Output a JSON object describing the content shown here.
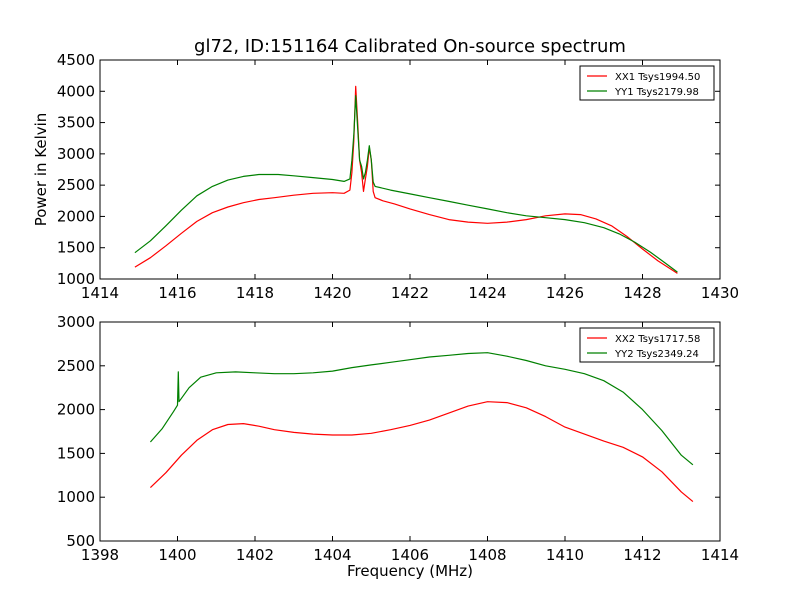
{
  "chart_data": [
    {
      "type": "line",
      "title": "gl72, ID:151164 Calibrated On-source spectrum",
      "xlabel": "",
      "ylabel": "Power in Kelvin",
      "xlim": [
        1414,
        1430
      ],
      "ylim": [
        1000,
        4500
      ],
      "xticks": [
        1414,
        1416,
        1418,
        1420,
        1422,
        1424,
        1426,
        1428,
        1430
      ],
      "yticks": [
        1000,
        1500,
        2000,
        2500,
        3000,
        3500,
        4000,
        4500
      ],
      "legend_position": "top-right",
      "grid": false,
      "series": [
        {
          "name": "XX1 Tsys1994.50",
          "color": "#ff0000",
          "points": [
            [
              1414.9,
              1190
            ],
            [
              1415.3,
              1340
            ],
            [
              1415.7,
              1530
            ],
            [
              1416.1,
              1730
            ],
            [
              1416.5,
              1920
            ],
            [
              1416.9,
              2060
            ],
            [
              1417.3,
              2150
            ],
            [
              1417.7,
              2220
            ],
            [
              1418.1,
              2270
            ],
            [
              1418.5,
              2300
            ],
            [
              1419.0,
              2340
            ],
            [
              1419.5,
              2370
            ],
            [
              1420.0,
              2380
            ],
            [
              1420.3,
              2370
            ],
            [
              1420.45,
              2420
            ],
            [
              1420.5,
              2700
            ],
            [
              1420.55,
              3200
            ],
            [
              1420.6,
              4080
            ],
            [
              1420.65,
              3500
            ],
            [
              1420.7,
              2900
            ],
            [
              1420.75,
              2700
            ],
            [
              1420.8,
              2400
            ],
            [
              1420.85,
              2600
            ],
            [
              1420.9,
              2800
            ],
            [
              1420.95,
              3100
            ],
            [
              1421.0,
              2900
            ],
            [
              1421.05,
              2400
            ],
            [
              1421.1,
              2300
            ],
            [
              1421.3,
              2250
            ],
            [
              1421.6,
              2200
            ],
            [
              1422.0,
              2120
            ],
            [
              1422.5,
              2030
            ],
            [
              1423.0,
              1950
            ],
            [
              1423.5,
              1910
            ],
            [
              1424.0,
              1890
            ],
            [
              1424.5,
              1910
            ],
            [
              1425.0,
              1950
            ],
            [
              1425.5,
              2010
            ],
            [
              1426.0,
              2040
            ],
            [
              1426.4,
              2030
            ],
            [
              1426.8,
              1960
            ],
            [
              1427.2,
              1850
            ],
            [
              1427.6,
              1680
            ],
            [
              1428.0,
              1480
            ],
            [
              1428.4,
              1290
            ],
            [
              1428.9,
              1090
            ]
          ]
        },
        {
          "name": "YY1 Tsys2179.98",
          "color": "#008000",
          "points": [
            [
              1414.9,
              1420
            ],
            [
              1415.3,
              1610
            ],
            [
              1415.7,
              1850
            ],
            [
              1416.1,
              2100
            ],
            [
              1416.5,
              2330
            ],
            [
              1416.9,
              2480
            ],
            [
              1417.3,
              2580
            ],
            [
              1417.7,
              2640
            ],
            [
              1418.1,
              2670
            ],
            [
              1418.6,
              2670
            ],
            [
              1419.0,
              2650
            ],
            [
              1419.5,
              2620
            ],
            [
              1420.0,
              2590
            ],
            [
              1420.3,
              2560
            ],
            [
              1420.45,
              2600
            ],
            [
              1420.5,
              2900
            ],
            [
              1420.55,
              3300
            ],
            [
              1420.6,
              3930
            ],
            [
              1420.65,
              3400
            ],
            [
              1420.7,
              2900
            ],
            [
              1420.75,
              2800
            ],
            [
              1420.8,
              2600
            ],
            [
              1420.85,
              2700
            ],
            [
              1420.9,
              2900
            ],
            [
              1420.95,
              3130
            ],
            [
              1421.0,
              2900
            ],
            [
              1421.05,
              2550
            ],
            [
              1421.1,
              2480
            ],
            [
              1421.5,
              2420
            ],
            [
              1422.0,
              2360
            ],
            [
              1422.5,
              2300
            ],
            [
              1423.0,
              2240
            ],
            [
              1423.5,
              2180
            ],
            [
              1424.0,
              2120
            ],
            [
              1424.5,
              2060
            ],
            [
              1425.0,
              2010
            ],
            [
              1425.5,
              1980
            ],
            [
              1426.0,
              1950
            ],
            [
              1426.5,
              1900
            ],
            [
              1427.0,
              1820
            ],
            [
              1427.4,
              1720
            ],
            [
              1427.8,
              1590
            ],
            [
              1428.2,
              1430
            ],
            [
              1428.6,
              1250
            ],
            [
              1428.9,
              1110
            ]
          ]
        }
      ]
    },
    {
      "type": "line",
      "title": "",
      "xlabel": "Frequency (MHz)",
      "ylabel": "",
      "xlim": [
        1398,
        1414
      ],
      "ylim": [
        500,
        3000
      ],
      "xticks": [
        1398,
        1400,
        1402,
        1404,
        1406,
        1408,
        1410,
        1412,
        1414
      ],
      "yticks": [
        500,
        1000,
        1500,
        2000,
        2500,
        3000
      ],
      "legend_position": "top-right",
      "grid": false,
      "series": [
        {
          "name": "XX2 Tsys1717.58",
          "color": "#ff0000",
          "points": [
            [
              1399.3,
              1110
            ],
            [
              1399.7,
              1280
            ],
            [
              1400.1,
              1480
            ],
            [
              1400.5,
              1650
            ],
            [
              1400.9,
              1770
            ],
            [
              1401.3,
              1830
            ],
            [
              1401.7,
              1840
            ],
            [
              1402.1,
              1810
            ],
            [
              1402.5,
              1770
            ],
            [
              1403.0,
              1740
            ],
            [
              1403.5,
              1720
            ],
            [
              1404.0,
              1710
            ],
            [
              1404.5,
              1710
            ],
            [
              1405.0,
              1730
            ],
            [
              1405.5,
              1770
            ],
            [
              1406.0,
              1820
            ],
            [
              1406.5,
              1880
            ],
            [
              1407.0,
              1960
            ],
            [
              1407.5,
              2040
            ],
            [
              1408.0,
              2090
            ],
            [
              1408.5,
              2080
            ],
            [
              1409.0,
              2020
            ],
            [
              1409.5,
              1920
            ],
            [
              1410.0,
              1800
            ],
            [
              1410.5,
              1720
            ],
            [
              1411.0,
              1640
            ],
            [
              1411.5,
              1570
            ],
            [
              1412.0,
              1460
            ],
            [
              1412.5,
              1290
            ],
            [
              1413.0,
              1060
            ],
            [
              1413.3,
              950
            ]
          ]
        },
        {
          "name": "YY2 Tsys2349.24",
          "color": "#008000",
          "points": [
            [
              1399.3,
              1630
            ],
            [
              1399.6,
              1780
            ],
            [
              1399.9,
              1980
            ],
            [
              1400.0,
              2050
            ],
            [
              1400.02,
              2430
            ],
            [
              1400.04,
              2090
            ],
            [
              1400.3,
              2250
            ],
            [
              1400.6,
              2370
            ],
            [
              1401.0,
              2420
            ],
            [
              1401.5,
              2430
            ],
            [
              1402.0,
              2420
            ],
            [
              1402.5,
              2410
            ],
            [
              1403.0,
              2410
            ],
            [
              1403.5,
              2420
            ],
            [
              1404.0,
              2440
            ],
            [
              1404.5,
              2480
            ],
            [
              1405.0,
              2510
            ],
            [
              1405.5,
              2540
            ],
            [
              1406.0,
              2570
            ],
            [
              1406.5,
              2600
            ],
            [
              1407.0,
              2620
            ],
            [
              1407.5,
              2640
            ],
            [
              1408.0,
              2650
            ],
            [
              1408.5,
              2610
            ],
            [
              1409.0,
              2560
            ],
            [
              1409.5,
              2500
            ],
            [
              1410.0,
              2460
            ],
            [
              1410.5,
              2410
            ],
            [
              1411.0,
              2330
            ],
            [
              1411.5,
              2200
            ],
            [
              1412.0,
              2000
            ],
            [
              1412.5,
              1760
            ],
            [
              1413.0,
              1480
            ],
            [
              1413.3,
              1370
            ]
          ]
        }
      ]
    }
  ]
}
